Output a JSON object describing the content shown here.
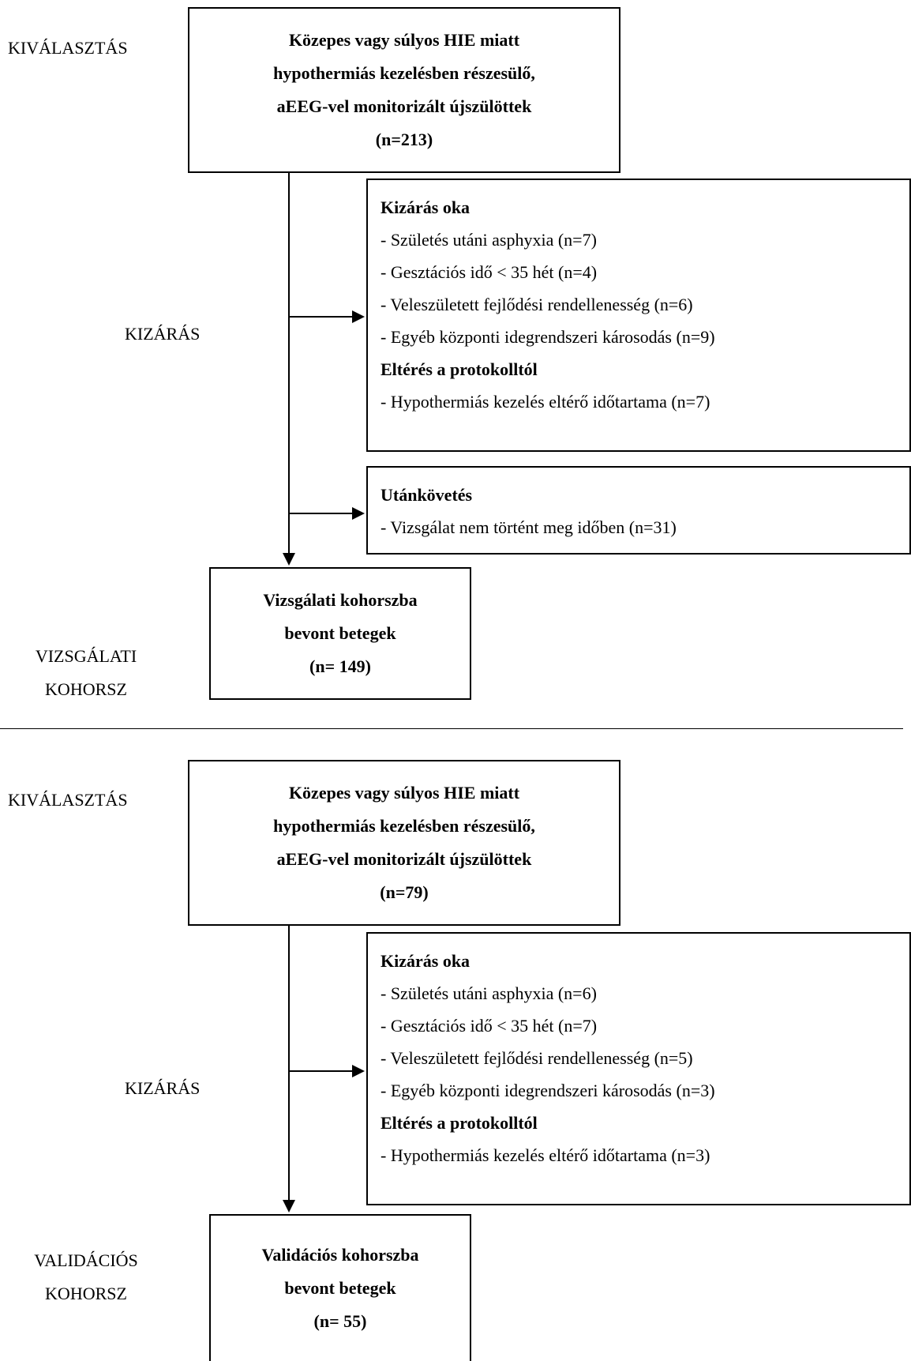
{
  "top": {
    "stage_selection": "KIVÁLASZTÁS",
    "stage_exclusion": "KIZÁRÁS",
    "stage_cohort_line1": "VIZSGÁLATI",
    "stage_cohort_line2": "KOHORSZ",
    "selection_box": {
      "line1": "Közepes vagy súlyos HIE miatt",
      "line2": "hypothermiás kezelésben részesülő,",
      "line3": "aEEG-vel monitorizált újszülöttek",
      "line4": "(n=213)"
    },
    "exclusion_box": {
      "heading1": "Kizárás oka",
      "item1": "- Születés utáni asphyxia (n=7)",
      "item2": "- Gesztációs idő < 35 hét (n=4)",
      "item3": "- Veleszületett fejlődési rendellenesség (n=6)",
      "item4": "- Egyéb központi idegrendszeri károsodás (n=9)",
      "heading2": "Eltérés a protokolltól",
      "item5": "- Hypothermiás kezelés eltérő időtartama (n=7)"
    },
    "followup_box": {
      "heading": "Utánkövetés",
      "item": "- Vizsgálat nem történt meg időben (n=31)"
    },
    "cohort_box": {
      "line1": "Vizsgálati kohorszba",
      "line2": "bevont betegek",
      "line3": "(n= 149)"
    }
  },
  "bottom": {
    "stage_selection": "KIVÁLASZTÁS",
    "stage_exclusion": "KIZÁRÁS",
    "stage_cohort_line1": "VALIDÁCIÓS",
    "stage_cohort_line2": "KOHORSZ",
    "selection_box": {
      "line1": "Közepes vagy súlyos HIE miatt",
      "line2": "hypothermiás kezelésben részesülő,",
      "line3": "aEEG-vel monitorizált újszülöttek",
      "line4": "(n=79)"
    },
    "exclusion_box": {
      "heading1": "Kizárás oka",
      "item1": "- Születés utáni asphyxia (n=6)",
      "item2": "- Gesztációs idő < 35 hét (n=7)",
      "item3": "- Veleszületett fejlődési rendellenesség (n=5)",
      "item4": "- Egyéb központi idegrendszeri károsodás (n=3)",
      "heading2": "Eltérés a protokolltól",
      "item5": "- Hypothermiás kezelés eltérő időtartama (n=3)"
    },
    "cohort_box": {
      "line1": "Validációs kohorszba",
      "line2": "bevont betegek",
      "line3": "(n= 55)"
    }
  }
}
